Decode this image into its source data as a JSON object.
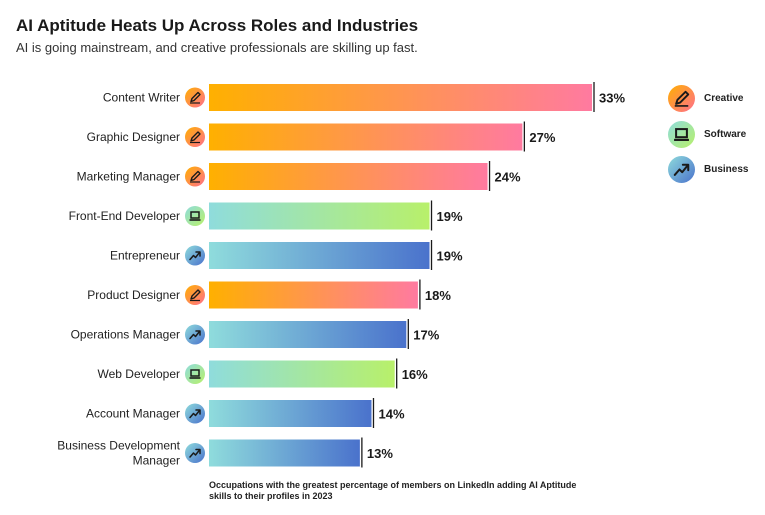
{
  "title": "AI Aptitude Heats Up Across Roles and Industries",
  "subtitle": "AI is going mainstream, and creative professionals are skilling up fast.",
  "footnote": "Occupations with the greatest percentage of members on LinkedIn adding AI Aptitude skills to their profiles in 2023",
  "legend": [
    {
      "label": "Creative",
      "category": "creative",
      "icon": "pencil-icon"
    },
    {
      "label": "Software",
      "category": "software",
      "icon": "laptop-icon"
    },
    {
      "label": "Business",
      "category": "business",
      "icon": "trend-up-icon"
    }
  ],
  "colors": {
    "creative": [
      "#ffb000",
      "#ff7aa0"
    ],
    "software": [
      "#8fdcdc",
      "#b8f06a"
    ],
    "business": [
      "#8fdcdc",
      "#4a72cc"
    ],
    "creative_icon": [
      "#ffb000",
      "#ff6f8e"
    ],
    "software_icon": [
      "#8fdcdc",
      "#b8f06a"
    ],
    "business_icon": [
      "#8fdcdc",
      "#4a72cc"
    ]
  },
  "chart_data": {
    "type": "bar",
    "orientation": "horizontal",
    "categories": [
      "Content Writer",
      "Graphic Designer",
      "Marketing Manager",
      "Front-End Developer",
      "Entrepreneur",
      "Product Designer",
      "Operations Manager",
      "Web Developer",
      "Account Manager",
      "Business Development Manager"
    ],
    "category_lines": [
      [
        "Content Writer"
      ],
      [
        "Graphic Designer"
      ],
      [
        "Marketing Manager"
      ],
      [
        "Front-End Developer"
      ],
      [
        "Entrepreneur"
      ],
      [
        "Product Designer"
      ],
      [
        "Operations Manager"
      ],
      [
        "Web Developer"
      ],
      [
        "Account Manager"
      ],
      [
        "Business Development",
        "Manager"
      ]
    ],
    "groups": [
      "creative",
      "creative",
      "creative",
      "software",
      "business",
      "creative",
      "business",
      "software",
      "business",
      "business"
    ],
    "values": [
      33,
      27,
      24,
      19,
      19,
      18,
      17,
      16,
      14,
      13
    ],
    "value_labels": [
      "33%",
      "27%",
      "24%",
      "19%",
      "19%",
      "18%",
      "17%",
      "16%",
      "14%",
      "13%"
    ],
    "unit": "%",
    "xlim": [
      0,
      33
    ],
    "grid": false,
    "legend_position": "right"
  }
}
